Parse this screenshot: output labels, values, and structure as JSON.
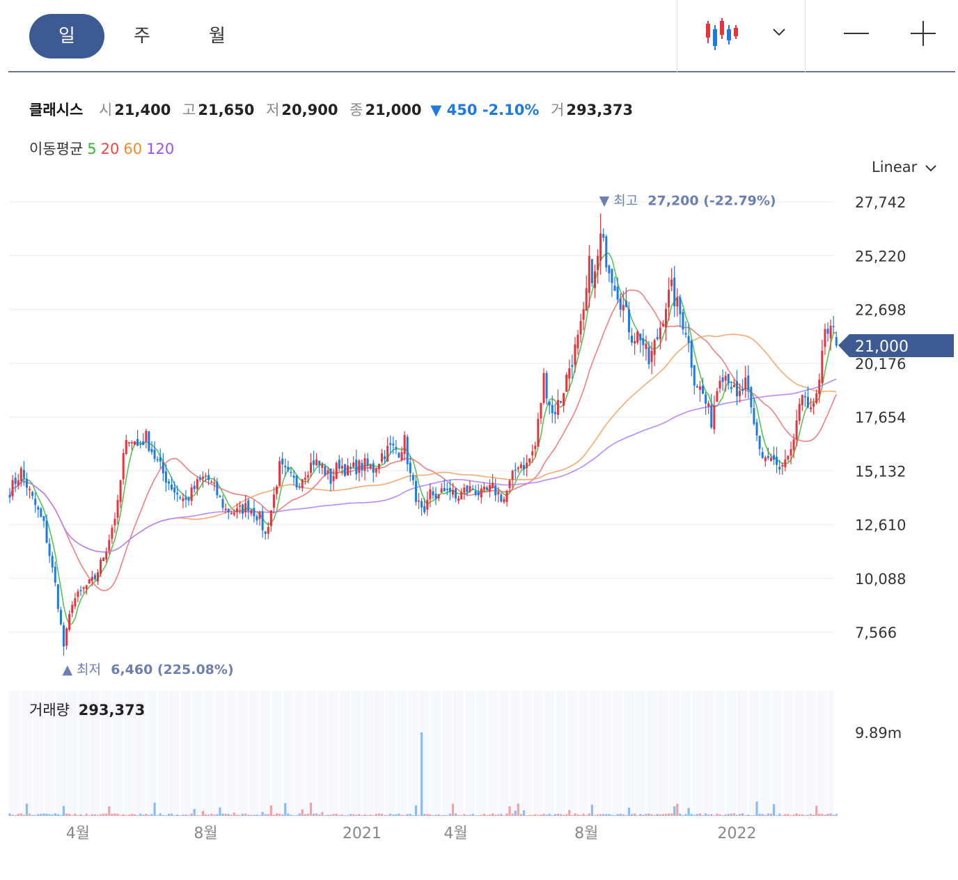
{
  "tabs": [
    {
      "label": "일",
      "active": true
    },
    {
      "label": "주",
      "active": false
    },
    {
      "label": "월",
      "active": false
    }
  ],
  "toolbar": {
    "chart_type_icon": "candlestick-icon",
    "dropdown_icon": "chevron-down-icon",
    "zoom_out_icon": "minus-icon",
    "zoom_in_icon": "plus-icon"
  },
  "quote": {
    "name": "클래시스",
    "open_label": "시",
    "open": "21,400",
    "high_label": "고",
    "high": "21,650",
    "low_label": "저",
    "low": "20,900",
    "close_label": "종",
    "close": "21,000",
    "change": "▼ 450 -2.10%",
    "volume_label": "거",
    "volume": "293,373"
  },
  "moving_average": {
    "label": "이동평균",
    "periods": [
      {
        "label": "5",
        "color": "#2fb82f"
      },
      {
        "label": "20",
        "color": "#ef4444"
      },
      {
        "label": "60",
        "color": "#f08a2c"
      },
      {
        "label": "120",
        "color": "#9b4dff"
      }
    ]
  },
  "scale_mode": "Linear",
  "colors": {
    "up": "#e8323c",
    "down": "#1f7ae0",
    "current_price_tag": "#3e5a93",
    "marker_text": "#6b7fb0",
    "vol_up": "#f2a0a6",
    "vol_down": "#8fbbf0"
  },
  "chart_data": {
    "type": "candlestick",
    "price_axis": {
      "ticks": [
        "27,742",
        "25,220",
        "22,698",
        "20,176",
        "17,654",
        "15,132",
        "12,610",
        "10,088",
        "7,566"
      ],
      "tick_values": [
        27742,
        25220,
        22698,
        20176,
        17654,
        15132,
        12610,
        10088,
        7566
      ]
    },
    "x_axis": {
      "ticks": [
        "4월",
        "8월",
        "2021",
        "4월",
        "8월",
        "2022"
      ],
      "tick_index": [
        24,
        69,
        124,
        157,
        203,
        256
      ]
    },
    "current_price": "21,000",
    "high_marker": {
      "text": "▼ 최고",
      "value": "27,200 (-22.79%)",
      "index": 208
    },
    "low_marker": {
      "text": "▲ 최저",
      "value": "6,460 (225.08%)",
      "index": 19
    },
    "anchors": [
      [
        0,
        14200
      ],
      [
        4,
        15100
      ],
      [
        8,
        13800
      ],
      [
        12,
        12600
      ],
      [
        16,
        9800
      ],
      [
        19,
        6900
      ],
      [
        22,
        9000
      ],
      [
        26,
        9600
      ],
      [
        30,
        10100
      ],
      [
        34,
        11500
      ],
      [
        38,
        13500
      ],
      [
        40,
        15800
      ],
      [
        42,
        16800
      ],
      [
        45,
        16300
      ],
      [
        48,
        16700
      ],
      [
        51,
        15800
      ],
      [
        54,
        15000
      ],
      [
        58,
        14200
      ],
      [
        62,
        13700
      ],
      [
        66,
        14500
      ],
      [
        69,
        14900
      ],
      [
        72,
        14300
      ],
      [
        76,
        13300
      ],
      [
        80,
        13200
      ],
      [
        84,
        13500
      ],
      [
        88,
        12900
      ],
      [
        90,
        12100
      ],
      [
        92,
        13300
      ],
      [
        95,
        15300
      ],
      [
        98,
        14900
      ],
      [
        101,
        14500
      ],
      [
        104,
        15100
      ],
      [
        107,
        15600
      ],
      [
        110,
        15300
      ],
      [
        113,
        14700
      ],
      [
        116,
        15500
      ],
      [
        119,
        15100
      ],
      [
        122,
        15300
      ],
      [
        125,
        15400
      ],
      [
        128,
        15200
      ],
      [
        131,
        15900
      ],
      [
        134,
        16200
      ],
      [
        137,
        16100
      ],
      [
        139,
        16500
      ],
      [
        141,
        14900
      ],
      [
        144,
        13500
      ],
      [
        146,
        12900
      ],
      [
        148,
        14100
      ],
      [
        151,
        13900
      ],
      [
        154,
        14400
      ],
      [
        157,
        13800
      ],
      [
        160,
        14200
      ],
      [
        163,
        14300
      ],
      [
        166,
        14000
      ],
      [
        170,
        14300
      ],
      [
        174,
        13800
      ],
      [
        176,
        14500
      ],
      [
        179,
        15500
      ],
      [
        182,
        15400
      ],
      [
        185,
        16300
      ],
      [
        188,
        19500
      ],
      [
        191,
        17800
      ],
      [
        194,
        18500
      ],
      [
        197,
        20000
      ],
      [
        200,
        21200
      ],
      [
        202,
        22300
      ],
      [
        204,
        24700
      ],
      [
        206,
        24200
      ],
      [
        208,
        26000
      ],
      [
        210,
        25200
      ],
      [
        213,
        24000
      ],
      [
        216,
        22800
      ],
      [
        219,
        21500
      ],
      [
        222,
        21500
      ],
      [
        225,
        20200
      ],
      [
        228,
        21400
      ],
      [
        231,
        23000
      ],
      [
        233,
        23600
      ],
      [
        235,
        22800
      ],
      [
        238,
        21800
      ],
      [
        241,
        19500
      ],
      [
        244,
        18700
      ],
      [
        247,
        17500
      ],
      [
        250,
        19800
      ],
      [
        253,
        19600
      ],
      [
        256,
        18400
      ],
      [
        259,
        19200
      ],
      [
        262,
        17200
      ],
      [
        265,
        15800
      ],
      [
        268,
        15700
      ],
      [
        271,
        15100
      ],
      [
        273,
        15400
      ],
      [
        275,
        15800
      ],
      [
        277,
        17500
      ],
      [
        280,
        18700
      ],
      [
        283,
        18000
      ],
      [
        285,
        19200
      ],
      [
        287,
        21500
      ],
      [
        289,
        22200
      ],
      [
        291,
        21000
      ]
    ],
    "volume": {
      "label": "거래량",
      "last": "293,373",
      "axis_tick": "9.89m",
      "max": 9890000,
      "spike_index": 145
    }
  }
}
